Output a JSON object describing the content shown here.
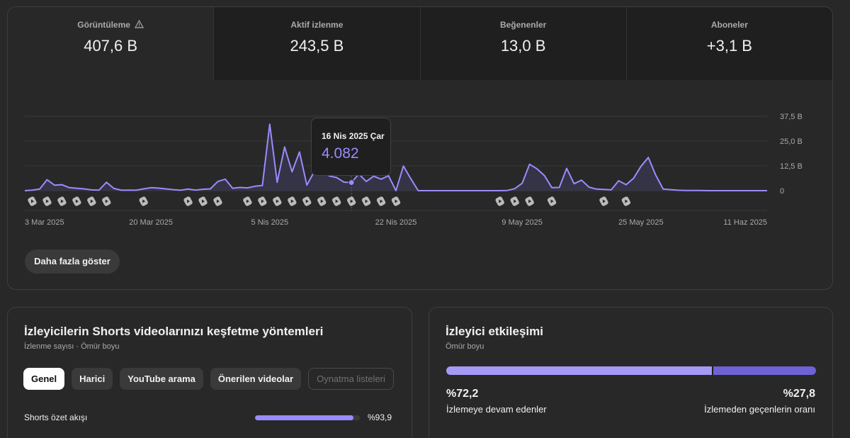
{
  "metrics": [
    {
      "label": "Görüntüleme",
      "value": "407,6 B",
      "warning_icon": "warning-triangle-icon",
      "active": true
    },
    {
      "label": "Aktif izlenme",
      "value": "243,5 B",
      "active": false
    },
    {
      "label": "Beğenenler",
      "value": "13,0 B",
      "active": false
    },
    {
      "label": "Aboneler",
      "value": "+3,1 B",
      "active": false
    }
  ],
  "colors": {
    "accent": "#9a8cff",
    "accent_dark": "#6e62d6",
    "card_bg": "#282828",
    "tab_bg": "#1f1f1f"
  },
  "chart_data": {
    "type": "area",
    "y_ticks": [
      "37,5 B",
      "25,0 B",
      "12,5 B",
      "0"
    ],
    "ylim": [
      0,
      37500
    ],
    "x_tick_labels": [
      {
        "label": "3 Mar 2025",
        "index": 0
      },
      {
        "label": "20 Mar 2025",
        "index": 17
      },
      {
        "label": "5 Nis 2025",
        "index": 33
      },
      {
        "label": "22 Nis 2025",
        "index": 50
      },
      {
        "label": "9 May 2025",
        "index": 67
      },
      {
        "label": "25 May 2025",
        "index": 83
      },
      {
        "label": "11 Haz 2025",
        "index": 100
      }
    ],
    "values": [
      0,
      300,
      800,
      5500,
      2800,
      3000,
      1500,
      1200,
      900,
      400,
      300,
      4200,
      1100,
      200,
      300,
      200,
      900,
      1500,
      1300,
      900,
      500,
      200,
      800,
      300,
      700,
      900,
      4600,
      5800,
      1200,
      1600,
      1400,
      2200,
      2600,
      33500,
      4200,
      22000,
      9500,
      19500,
      2800,
      9600,
      12300,
      7400,
      6600,
      4300,
      4082,
      8400,
      4600,
      7300,
      5800,
      7500,
      0,
      12400,
      6000,
      0,
      0,
      0,
      0,
      0,
      0,
      0,
      0,
      0,
      0,
      0,
      0,
      100,
      1000,
      3700,
      13300,
      11000,
      7600,
      1500,
      1600,
      11200,
      3500,
      5300,
      1800,
      800,
      600,
      400,
      5000,
      3000,
      6200,
      12200,
      16700,
      7800,
      800,
      500,
      200,
      100,
      100,
      100,
      0,
      0,
      0,
      0,
      0,
      0,
      0,
      0,
      0
    ],
    "shorts_markers": [
      1,
      3,
      5,
      7,
      9,
      11,
      16,
      22,
      24,
      26,
      30,
      32,
      34,
      36,
      38,
      40,
      42,
      44,
      46,
      48,
      50,
      64,
      66,
      68,
      71,
      78,
      81
    ],
    "tooltip": {
      "date": "16 Nis 2025 Çar",
      "value": "4.082",
      "index": 44
    },
    "grid": true
  },
  "more_button": "Daha fazla göster",
  "discovery": {
    "title": "İzleyicilerin Shorts videolarınızı keşfetme yöntemleri",
    "subtitle": "İzlenme sayısı · Ömür boyu",
    "chips": [
      {
        "label": "Genel",
        "active": true,
        "disabled": false
      },
      {
        "label": "Harici",
        "active": false,
        "disabled": false
      },
      {
        "label": "YouTube arama",
        "active": false,
        "disabled": false
      },
      {
        "label": "Önerilen videolar",
        "active": false,
        "disabled": false
      },
      {
        "label": "Oynatma listeleri",
        "active": false,
        "disabled": true
      }
    ],
    "rows": [
      {
        "label": "Shorts özet akışı",
        "value": "%93,9",
        "fraction": 0.939
      }
    ]
  },
  "engagement": {
    "title": "İzleyici etkileşimi",
    "subtitle": "Ömür boyu",
    "continue_pct": "%72,2",
    "continue_fraction": 0.722,
    "continue_label": "İzlemeye devam edenler",
    "skip_pct": "%27,8",
    "skip_label": "İzlemeden geçenlerin oranı"
  }
}
